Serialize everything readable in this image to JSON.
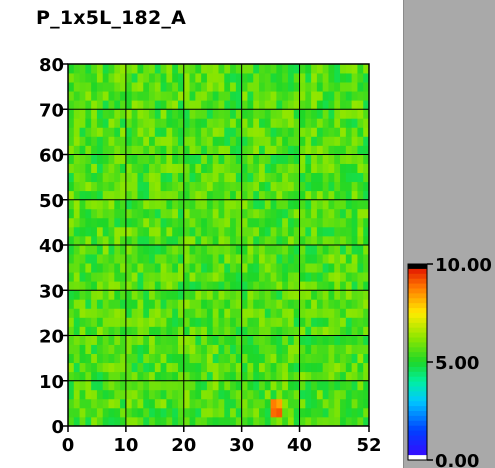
{
  "chart_data": {
    "type": "heatmap",
    "title": "P_1x5L_182_A",
    "xlabel": "",
    "ylabel": "",
    "xlim": [
      0,
      52
    ],
    "ylim": [
      0,
      80
    ],
    "x_ticks": [
      "0",
      "10",
      "20",
      "30",
      "40",
      "52"
    ],
    "y_ticks": [
      "0",
      "10",
      "20",
      "30",
      "40",
      "50",
      "60",
      "70",
      "80"
    ],
    "x_tick_values": [
      0,
      10,
      20,
      30,
      40,
      52
    ],
    "y_tick_values": [
      0,
      10,
      20,
      30,
      40,
      50,
      60,
      70,
      80
    ],
    "grid": true,
    "value_range": [
      0,
      10
    ],
    "typical_value": 5.5,
    "hotspot": {
      "x": [
        35,
        37
      ],
      "y": [
        2,
        6
      ],
      "value": 8.5
    },
    "colorbar": {
      "labels": [
        "10.00",
        "5.00",
        "0.00"
      ],
      "values": [
        10,
        5,
        0
      ],
      "placement": "right"
    },
    "colors": {
      "low": "#0000ff",
      "mid": "#22dd22",
      "high": "#ff0000"
    }
  }
}
